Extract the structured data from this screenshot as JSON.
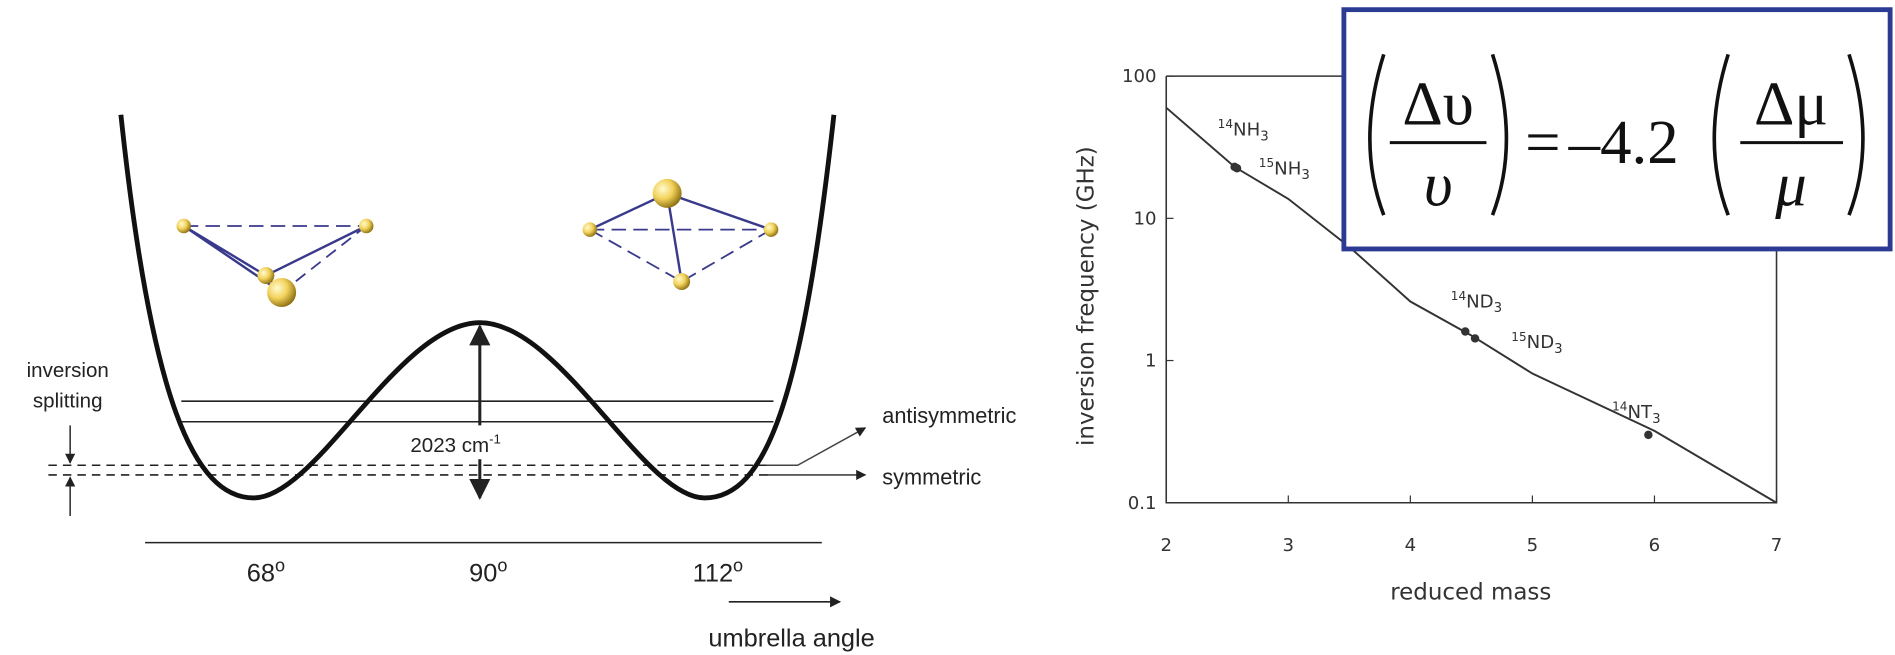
{
  "diagram": {
    "splitting_label": [
      "inversion",
      "splitting"
    ],
    "barrier": {
      "text": "2023 cm",
      "sup": "-1"
    },
    "levels": [
      "antisymmetric",
      "symmetric"
    ],
    "angles": [
      {
        "text": "68",
        "sup": "o"
      },
      {
        "text": "90",
        "sup": "o"
      },
      {
        "text": "112",
        "sup": "o"
      }
    ],
    "axis_label": "umbrella angle"
  },
  "equation": {
    "lhs_num": "Δυ",
    "lhs_den": "υ",
    "relation": "=",
    "coef": "–4.2",
    "rhs_num": "Δμ",
    "rhs_den": "μ"
  },
  "chart_data": {
    "type": "scatter",
    "xlabel": "reduced mass",
    "ylabel": "inversion frequency (GHz)",
    "xlim": [
      2,
      7
    ],
    "xticks": [
      2,
      3,
      4,
      5,
      6,
      7
    ],
    "ylim": [
      0.1,
      100
    ],
    "yticks": [
      0.1,
      1,
      10,
      100
    ],
    "ylog": true,
    "color": "#333333",
    "curve": {
      "x": [
        2,
        2.56,
        3,
        3.5,
        4,
        4.5,
        5,
        6,
        7
      ],
      "values": [
        60,
        23,
        13.7,
        6.3,
        2.6,
        1.5,
        0.81,
        0.32,
        0.1
      ]
    },
    "points": {
      "x": [
        2.56,
        2.58,
        4.45,
        4.53,
        5.95
      ],
      "values": [
        23,
        22.5,
        1.6,
        1.43,
        0.3
      ],
      "labels": [
        {
          "iso": "14",
          "formula": "NH",
          "sub": "3"
        },
        {
          "iso": "15",
          "formula": "NH",
          "sub": "3"
        },
        {
          "iso": "14",
          "formula": "ND",
          "sub": "3"
        },
        {
          "iso": "15",
          "formula": "ND",
          "sub": "3"
        },
        {
          "iso": "14",
          "formula": "NT",
          "sub": "3"
        }
      ]
    }
  }
}
